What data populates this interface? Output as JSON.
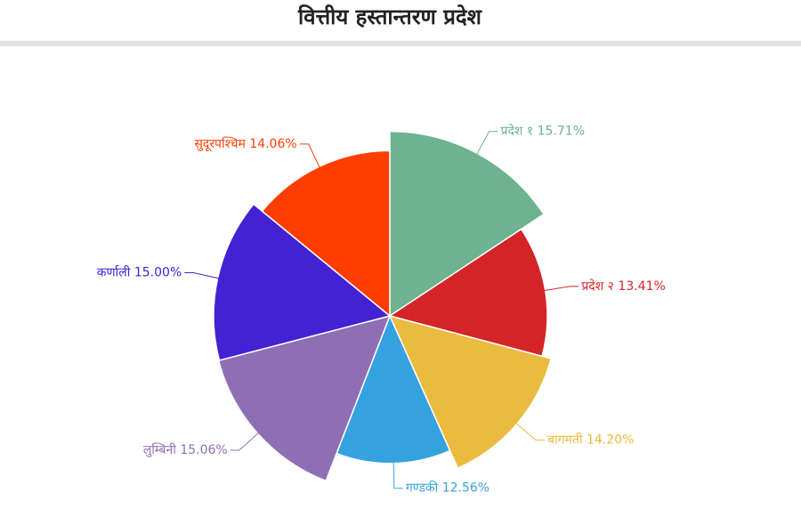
{
  "chart_data": {
    "type": "pie",
    "title": "वित्तीय हस्तान्तरण प्रदेश",
    "categories": [
      "प्रदेश १",
      "प्रदेश २",
      "बागमती",
      "गण्डकी",
      "लुम्बिनी",
      "कर्णाली",
      "सुदूरपश्चिम"
    ],
    "values": [
      15.71,
      13.41,
      14.2,
      12.56,
      15.06,
      15.0,
      14.06
    ],
    "value_labels": [
      "15.71%",
      "13.41%",
      "14.20%",
      "12.56%",
      "15.06%",
      "15.00%",
      "14.06%"
    ],
    "colors": [
      "#6db38f",
      "#d32528",
      "#eabb3e",
      "#35a2e0",
      "#8e6fb4",
      "#4322d3",
      "#fd3e00"
    ]
  }
}
